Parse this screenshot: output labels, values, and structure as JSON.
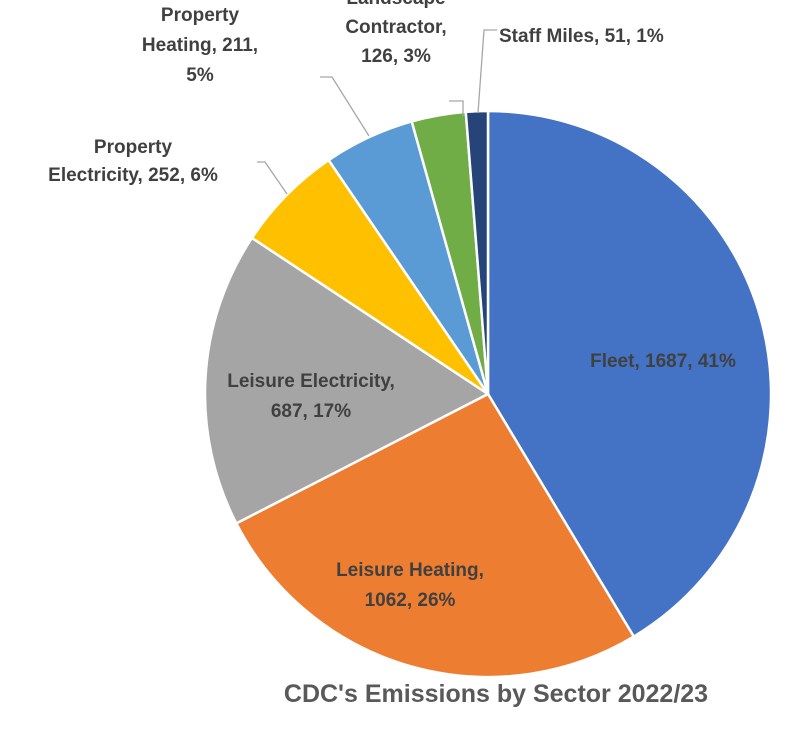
{
  "chart_data": {
    "type": "pie",
    "title": "CDC's Emissions by Sector 2022/23",
    "start_angle_deg": 0,
    "direction": "clockwise",
    "slices": [
      {
        "key": "fleet",
        "label": "Fleet",
        "value": 1687,
        "percent": "41%",
        "color": "#4472C4",
        "label_lines": [
          "Fleet, 1687, 41%"
        ],
        "label_placement": "inside"
      },
      {
        "key": "leisure-heating",
        "label": "Leisure Heating",
        "value": 1062,
        "percent": "26%",
        "color": "#ED7D31",
        "label_lines": [
          "Leisure Heating,",
          "1062, 26%"
        ],
        "label_placement": "inside"
      },
      {
        "key": "leisure-electricity",
        "label": "Leisure Electricity",
        "value": 687,
        "percent": "17%",
        "color": "#A5A5A5",
        "label_lines": [
          "Leisure Electricity,",
          "687, 17%"
        ],
        "label_placement": "inside"
      },
      {
        "key": "property-electricity",
        "label": "Property Electricity",
        "value": 252,
        "percent": "6%",
        "color": "#FFC000",
        "label_lines": [
          "Property",
          "Electricity, 252, 6%"
        ],
        "label_placement": "outside"
      },
      {
        "key": "property-heating",
        "label": "Property Heating",
        "value": 211,
        "percent": "5%",
        "color": "#5B9BD5",
        "label_lines": [
          "Property",
          "Heating, 211,",
          "5%"
        ],
        "label_placement": "outside"
      },
      {
        "key": "landscape-contractor",
        "label": "Landscape Contractor",
        "value": 126,
        "percent": "3%",
        "color": "#70AD47",
        "label_lines": [
          "Landscape",
          "Contractor,",
          "126, 3%"
        ],
        "label_placement": "outside"
      },
      {
        "key": "staff-miles",
        "label": "Staff Miles",
        "value": 51,
        "percent": "1%",
        "color": "#264478",
        "label_lines": [
          "Staff Miles, 51, 1%"
        ],
        "label_placement": "outside"
      }
    ]
  }
}
